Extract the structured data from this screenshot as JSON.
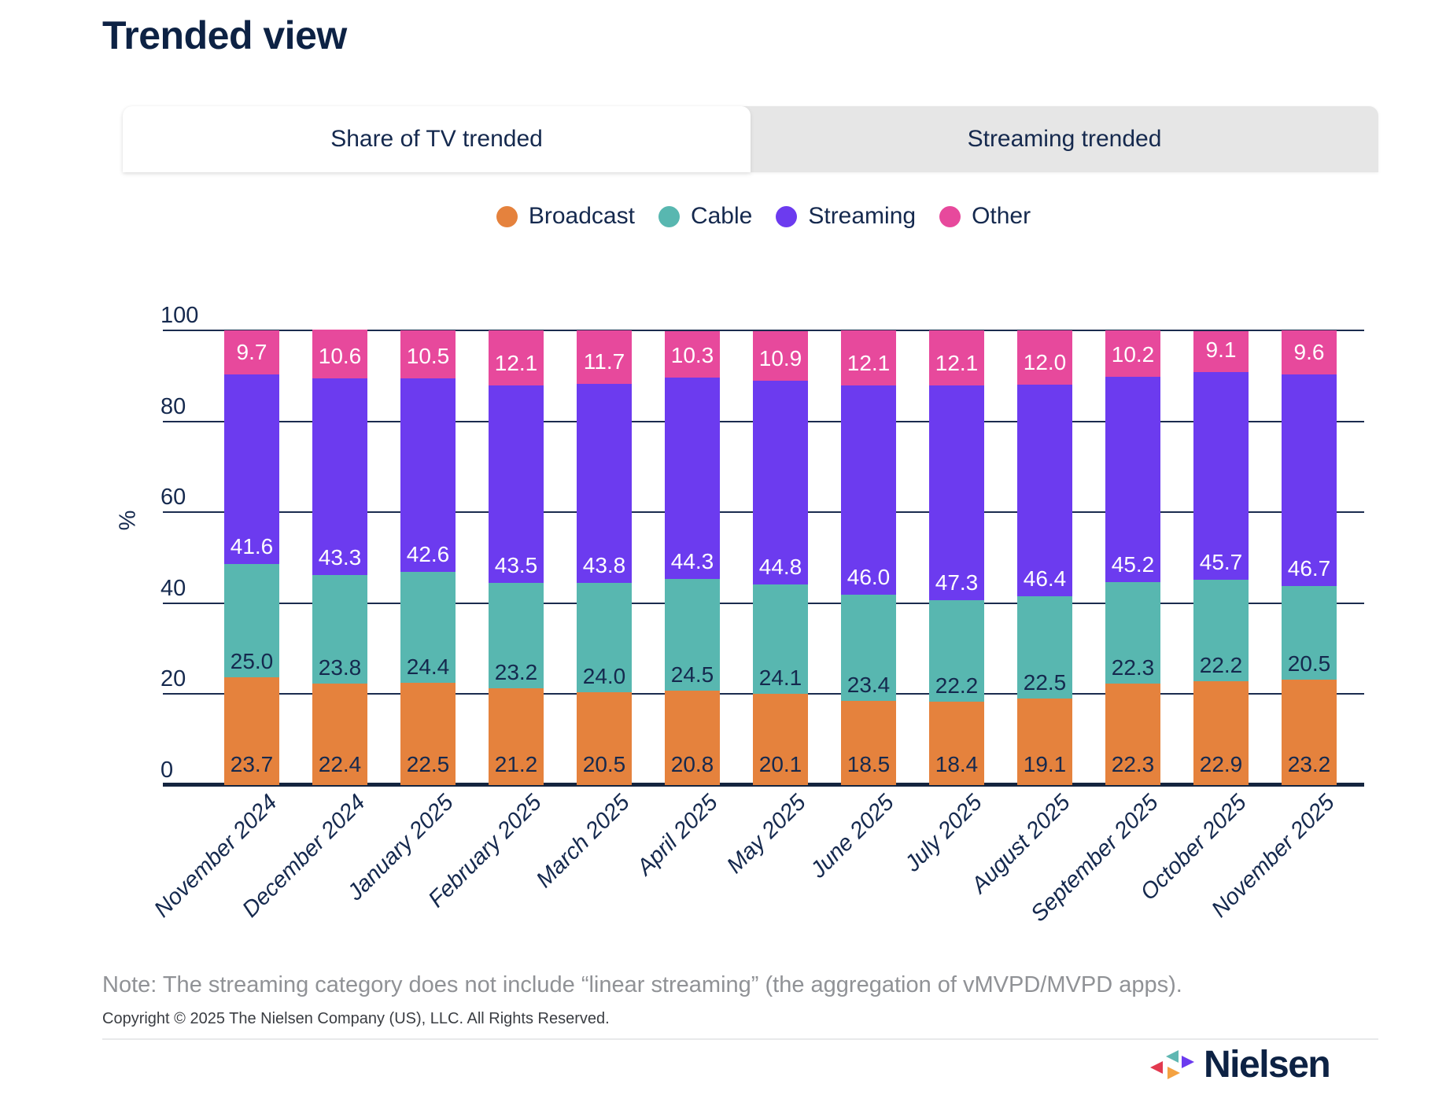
{
  "page": {
    "title": "Trended view",
    "tabs": [
      {
        "label": "Share of TV trended",
        "active": true
      },
      {
        "label": "Streaming trended",
        "active": false
      }
    ],
    "note": "Note: The streaming category does not include “linear streaming” (the aggregation of vMVPD/MVPD apps).",
    "copyright": "Copyright © 2025 The Nielsen Company (US), LLC. All Rights Reserved.",
    "logo_text": "Nielsen"
  },
  "colors": {
    "navy_text": "#15294E",
    "title_navy": "#0D2244",
    "tab_inactive_bg": "#E6E6E6",
    "note_gray": "#909296",
    "logo_red": "#E2394F",
    "logo_teal": "#5FB7B2",
    "logo_orange": "#F4A242",
    "logo_purple": "#6C3BEF"
  },
  "chart_data": {
    "type": "bar",
    "stacked": true,
    "title": "",
    "xlabel": "",
    "ylabel": "%",
    "ylim": [
      0,
      100
    ],
    "yticks": [
      0,
      20,
      40,
      60,
      80,
      100
    ],
    "grid": true,
    "legend_position": "top",
    "categories": [
      "November 2024",
      "December 2024",
      "January 2025",
      "February 2025",
      "March 2025",
      "April 2025",
      "May 2025",
      "June 2025",
      "July 2025",
      "August 2025",
      "September 2025",
      "October 2025",
      "November 2025"
    ],
    "series": [
      {
        "name": "Broadcast",
        "color": "#E5823D",
        "label_color": "#15294E",
        "values": [
          23.7,
          22.4,
          22.5,
          21.2,
          20.5,
          20.8,
          20.1,
          18.5,
          18.4,
          19.1,
          22.3,
          22.9,
          23.2
        ]
      },
      {
        "name": "Cable",
        "color": "#58B7B0",
        "label_color": "#15294E",
        "values": [
          25.0,
          23.8,
          24.4,
          23.2,
          24.0,
          24.5,
          24.1,
          23.4,
          22.2,
          22.5,
          22.3,
          22.2,
          20.5
        ]
      },
      {
        "name": "Streaming",
        "color": "#6C3BEF",
        "label_color": "#FFFFFF",
        "values": [
          41.6,
          43.3,
          42.6,
          43.5,
          43.8,
          44.3,
          44.8,
          46.0,
          47.3,
          46.4,
          45.2,
          45.7,
          46.7
        ]
      },
      {
        "name": "Other",
        "color": "#E7499C",
        "label_color": "#FFFFFF",
        "values": [
          9.7,
          10.6,
          10.5,
          12.1,
          11.7,
          10.3,
          10.9,
          12.1,
          12.1,
          12.0,
          10.2,
          9.1,
          9.6
        ]
      }
    ]
  }
}
